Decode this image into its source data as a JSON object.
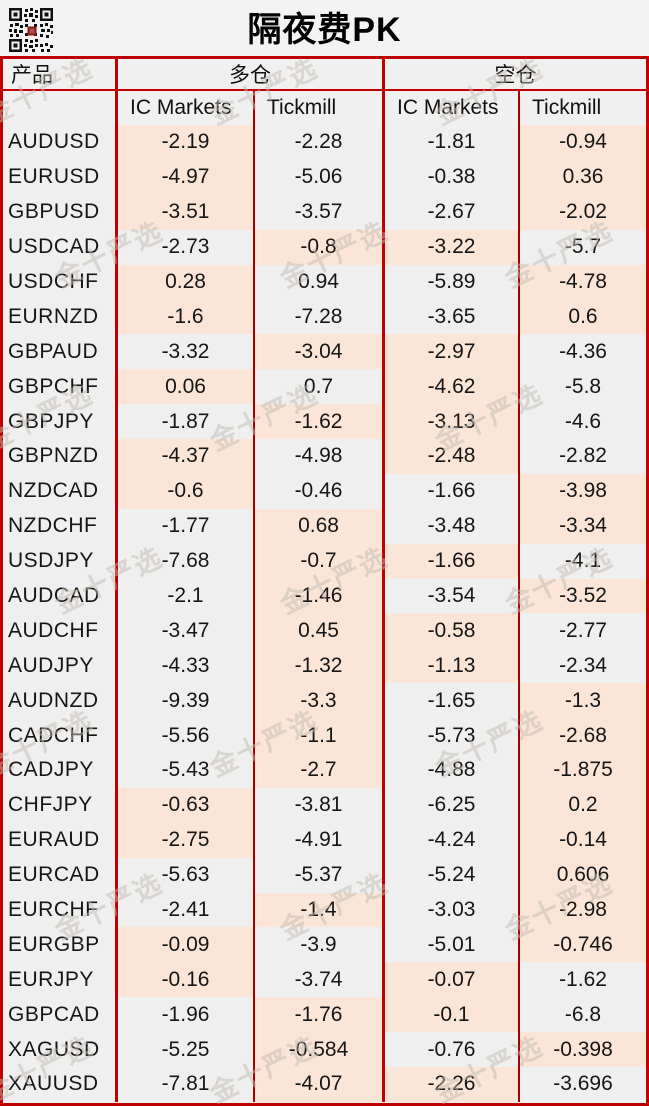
{
  "title": "隔夜费PK",
  "watermark_text": "金十严选",
  "colors": {
    "border_red": "#c00000",
    "highlight_peach": "#fbe5d6",
    "cell_gray": "#efefef",
    "background": "#f3f3f3"
  },
  "table": {
    "product_header": "产品",
    "group_headers": {
      "long": "多仓",
      "short": "空仓"
    },
    "broker_headers": [
      "IC Markets",
      "Tickmill",
      "IC Markets",
      "Tickmill"
    ],
    "rows": [
      {
        "product": "AUDUSD",
        "values": [
          "-2.19",
          "-2.28",
          "-1.81",
          "-0.94"
        ],
        "highlight": [
          true,
          false,
          false,
          true
        ]
      },
      {
        "product": "EURUSD",
        "values": [
          "-4.97",
          "-5.06",
          "-0.38",
          "0.36"
        ],
        "highlight": [
          true,
          false,
          false,
          true
        ]
      },
      {
        "product": "GBPUSD",
        "values": [
          "-3.51",
          "-3.57",
          "-2.67",
          "-2.02"
        ],
        "highlight": [
          true,
          false,
          false,
          true
        ]
      },
      {
        "product": "USDCAD",
        "values": [
          "-2.73",
          "-0.8",
          "-3.22",
          "-5.7"
        ],
        "highlight": [
          false,
          true,
          true,
          false
        ]
      },
      {
        "product": "USDCHF",
        "values": [
          "0.28",
          "0.94",
          "-5.89",
          "-4.78"
        ],
        "highlight": [
          true,
          false,
          false,
          true
        ]
      },
      {
        "product": "EURNZD",
        "values": [
          "-1.6",
          "-7.28",
          "-3.65",
          "0.6"
        ],
        "highlight": [
          true,
          false,
          false,
          true
        ]
      },
      {
        "product": "GBPAUD",
        "values": [
          "-3.32",
          "-3.04",
          "-2.97",
          "-4.36"
        ],
        "highlight": [
          false,
          true,
          true,
          false
        ]
      },
      {
        "product": "GBPCHF",
        "values": [
          "0.06",
          "0.7",
          "-4.62",
          "-5.8"
        ],
        "highlight": [
          true,
          false,
          true,
          false
        ]
      },
      {
        "product": "GBPJPY",
        "values": [
          "-1.87",
          "-1.62",
          "-3.13",
          "-4.6"
        ],
        "highlight": [
          false,
          true,
          true,
          false
        ]
      },
      {
        "product": "GBPNZD",
        "values": [
          "-4.37",
          "-4.98",
          "-2.48",
          "-2.82"
        ],
        "highlight": [
          true,
          false,
          true,
          false
        ]
      },
      {
        "product": "NZDCAD",
        "values": [
          "-0.6",
          "-0.46",
          "-1.66",
          "-3.98"
        ],
        "highlight": [
          true,
          false,
          false,
          true
        ]
      },
      {
        "product": "NZDCHF",
        "values": [
          "-1.77",
          "0.68",
          "-3.48",
          "-3.34"
        ],
        "highlight": [
          false,
          true,
          false,
          true
        ]
      },
      {
        "product": "USDJPY",
        "values": [
          "-7.68",
          "-0.7",
          "-1.66",
          "-4.1"
        ],
        "highlight": [
          false,
          true,
          true,
          false
        ]
      },
      {
        "product": "AUDCAD",
        "values": [
          "-2.1",
          "-1.46",
          "-3.54",
          "-3.52"
        ],
        "highlight": [
          false,
          true,
          false,
          true
        ]
      },
      {
        "product": "AUDCHF",
        "values": [
          "-3.47",
          "0.45",
          "-0.58",
          "-2.77"
        ],
        "highlight": [
          false,
          true,
          true,
          false
        ]
      },
      {
        "product": "AUDJPY",
        "values": [
          "-4.33",
          "-1.32",
          "-1.13",
          "-2.34"
        ],
        "highlight": [
          false,
          true,
          true,
          false
        ]
      },
      {
        "product": "AUDNZD",
        "values": [
          "-9.39",
          "-3.3",
          "-1.65",
          "-1.3"
        ],
        "highlight": [
          false,
          true,
          false,
          true
        ]
      },
      {
        "product": "CADCHF",
        "values": [
          "-5.56",
          "-1.1",
          "-5.73",
          "-2.68"
        ],
        "highlight": [
          false,
          true,
          false,
          true
        ]
      },
      {
        "product": "CADJPY",
        "values": [
          "-5.43",
          "-2.7",
          "-4.88",
          "-1.875"
        ],
        "highlight": [
          false,
          true,
          false,
          true
        ]
      },
      {
        "product": "CHFJPY",
        "values": [
          "-0.63",
          "-3.81",
          "-6.25",
          "0.2"
        ],
        "highlight": [
          true,
          false,
          false,
          true
        ]
      },
      {
        "product": "EURAUD",
        "values": [
          "-2.75",
          "-4.91",
          "-4.24",
          "-0.14"
        ],
        "highlight": [
          true,
          false,
          false,
          true
        ]
      },
      {
        "product": "EURCAD",
        "values": [
          "-5.63",
          "-5.37",
          "-5.24",
          "0.606"
        ],
        "highlight": [
          false,
          false,
          false,
          true
        ]
      },
      {
        "product": "EURCHF",
        "values": [
          "-2.41",
          "-1.4",
          "-3.03",
          "-2.98"
        ],
        "highlight": [
          false,
          true,
          false,
          true
        ]
      },
      {
        "product": "EURGBP",
        "values": [
          "-0.09",
          "-3.9",
          "-5.01",
          "-0.746"
        ],
        "highlight": [
          true,
          false,
          false,
          true
        ]
      },
      {
        "product": "EURJPY",
        "values": [
          "-0.16",
          "-3.74",
          "-0.07",
          "-1.62"
        ],
        "highlight": [
          true,
          false,
          true,
          false
        ]
      },
      {
        "product": "GBPCAD",
        "values": [
          "-1.96",
          "-1.76",
          "-0.1",
          "-6.8"
        ],
        "highlight": [
          false,
          true,
          true,
          false
        ]
      },
      {
        "product": "XAGUSD",
        "values": [
          "-5.25",
          "-0.584",
          "-0.76",
          "-0.398"
        ],
        "highlight": [
          false,
          true,
          false,
          true
        ]
      },
      {
        "product": "XAUUSD",
        "values": [
          "-7.81",
          "-4.07",
          "-2.26",
          "-3.696"
        ],
        "highlight": [
          false,
          true,
          true,
          false
        ]
      }
    ]
  },
  "chart_data": {
    "type": "table",
    "title": "隔夜费PK",
    "columns": [
      "产品",
      "多仓 IC Markets",
      "多仓 Tickmill",
      "空仓 IC Markets",
      "空仓 Tickmill"
    ],
    "categories": [
      "AUDUSD",
      "EURUSD",
      "GBPUSD",
      "USDCAD",
      "USDCHF",
      "EURNZD",
      "GBPAUD",
      "GBPCHF",
      "GBPJPY",
      "GBPNZD",
      "NZDCAD",
      "NZDCHF",
      "USDJPY",
      "AUDCAD",
      "AUDCHF",
      "AUDJPY",
      "AUDNZD",
      "CADCHF",
      "CADJPY",
      "CHFJPY",
      "EURAUD",
      "EURCAD",
      "EURCHF",
      "EURGBP",
      "EURJPY",
      "GBPCAD",
      "XAGUSD",
      "XAUUSD"
    ],
    "series": [
      {
        "name": "多仓 IC Markets",
        "values": [
          -2.19,
          -4.97,
          -3.51,
          -2.73,
          0.28,
          -1.6,
          -3.32,
          0.06,
          -1.87,
          -4.37,
          -0.6,
          -1.77,
          -7.68,
          -2.1,
          -3.47,
          -4.33,
          -9.39,
          -5.56,
          -5.43,
          -0.63,
          -2.75,
          -5.63,
          -2.41,
          -0.09,
          -0.16,
          -1.96,
          -5.25,
          -7.81
        ]
      },
      {
        "name": "多仓 Tickmill",
        "values": [
          -2.28,
          -5.06,
          -3.57,
          -0.8,
          0.94,
          -7.28,
          -3.04,
          0.7,
          -1.62,
          -4.98,
          -0.46,
          0.68,
          -0.7,
          -1.46,
          0.45,
          -1.32,
          -3.3,
          -1.1,
          -2.7,
          -3.81,
          -4.91,
          -5.37,
          -1.4,
          -3.9,
          -3.74,
          -1.76,
          -0.584,
          -4.07
        ]
      },
      {
        "name": "空仓 IC Markets",
        "values": [
          -1.81,
          -0.38,
          -2.67,
          -3.22,
          -5.89,
          -3.65,
          -2.97,
          -4.62,
          -3.13,
          -2.48,
          -1.66,
          -3.48,
          -1.66,
          -3.54,
          -0.58,
          -1.13,
          -1.65,
          -5.73,
          -4.88,
          -6.25,
          -4.24,
          -5.24,
          -3.03,
          -5.01,
          -0.07,
          -0.1,
          -0.76,
          -2.26
        ]
      },
      {
        "name": "空仓 Tickmill",
        "values": [
          -0.94,
          0.36,
          -2.02,
          -5.7,
          -4.78,
          0.6,
          -4.36,
          -5.8,
          -4.6,
          -2.82,
          -3.98,
          -3.34,
          -4.1,
          -3.52,
          -2.77,
          -2.34,
          -1.3,
          -2.68,
          -1.875,
          0.2,
          -0.14,
          0.606,
          -2.98,
          -0.746,
          -1.62,
          -6.8,
          -0.398,
          -3.696
        ]
      }
    ],
    "legend_position": "none",
    "grid": true
  }
}
